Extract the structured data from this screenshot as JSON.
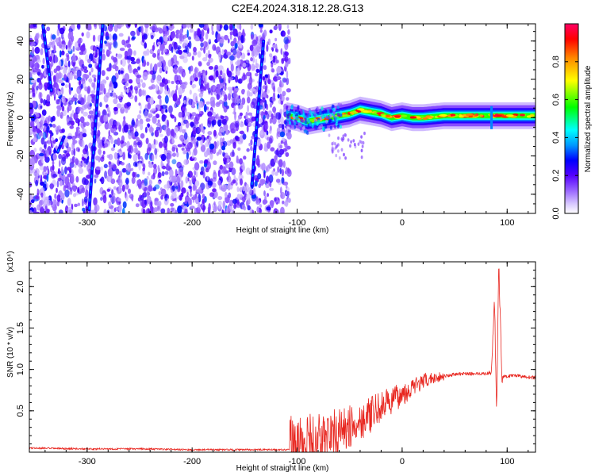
{
  "title": "C2E4.2024.318.12.28.G13",
  "chart_data": [
    {
      "type": "heatmap",
      "xlabel": "Height of straight line (km)",
      "ylabel": "Frequency (Hz)",
      "xlim": [
        -355,
        127
      ],
      "ylim": [
        -50,
        49
      ],
      "x_ticks": [
        -300,
        -200,
        -100,
        0,
        100
      ],
      "y_ticks": [
        -40,
        -20,
        0,
        20,
        40
      ],
      "x_tick_labels": [
        "-300",
        "-200",
        "-100",
        "0",
        "100"
      ],
      "y_tick_labels": [
        "-40",
        "-20",
        "0",
        "20",
        "40"
      ],
      "grid": false,
      "colorbar": {
        "label": "Normalized spectral amplitude",
        "range": [
          0.0,
          1.0
        ],
        "ticks": [
          0.0,
          0.2,
          0.4,
          0.6,
          0.8
        ],
        "tick_labels": [
          "0.0",
          "0.2",
          "0.4",
          "0.6",
          "0.8"
        ],
        "colormap": [
          "#ffffff",
          "#9966ff",
          "#5500ff",
          "#0000ff",
          "#00ffff",
          "#00ff00",
          "#ffff00",
          "#ff8800",
          "#ff0000",
          "#ff0066"
        ]
      },
      "noise_region": {
        "x": [
          -355,
          -107
        ],
        "amplitude": [
          0.05,
          0.3
        ]
      },
      "signal_trace": {
        "x": [
          -110,
          -100,
          -90,
          -80,
          -70,
          -60,
          -50,
          -40,
          -30,
          -20,
          -10,
          0,
          10,
          20,
          40,
          60,
          80,
          90,
          100,
          110,
          127
        ],
        "frequency": [
          1,
          0,
          -2,
          -1,
          0,
          1,
          2,
          4,
          3,
          2,
          0,
          1,
          0,
          0,
          1,
          1,
          1,
          1,
          1,
          1,
          1
        ]
      },
      "streaks": [
        {
          "x": [
            -342,
            -334
          ],
          "y": [
            48,
            14
          ]
        },
        {
          "x": [
            -328,
            -322
          ],
          "y": [
            -18,
            -10
          ]
        },
        {
          "x": [
            -298,
            -285
          ],
          "y": [
            -48,
            49
          ]
        },
        {
          "x": [
            -143,
            -132
          ],
          "y": [
            -35,
            40
          ]
        }
      ]
    },
    {
      "type": "line",
      "xlabel": "Height of straight line (km)",
      "ylabel": "SNR (10 * v/v)",
      "y_scale_label": "(x10⁴)",
      "xlim": [
        -355,
        127
      ],
      "ylim": [
        0,
        2.3
      ],
      "x_ticks": [
        -300,
        -200,
        -100,
        0,
        100
      ],
      "y_ticks": [
        0.5,
        1.0,
        1.5,
        2.0
      ],
      "x_tick_labels": [
        "-300",
        "-200",
        "-100",
        "0",
        "100"
      ],
      "y_tick_labels": [
        "0.5",
        "1.0",
        "1.5",
        "2.0"
      ],
      "grid": false,
      "color": "#e8261f",
      "series": [
        {
          "x": [
            -355,
            -300,
            -250,
            -200,
            -150,
            -110,
            -100,
            -90,
            -80,
            -70,
            -60,
            -50,
            -40,
            -30,
            -20,
            -10,
            0,
            10,
            20,
            30,
            40,
            50,
            60,
            70,
            80,
            85,
            88,
            90,
            92,
            95,
            100,
            110,
            120,
            127
          ],
          "values": [
            0.05,
            0.04,
            0.04,
            0.03,
            0.03,
            0.03,
            0.06,
            0.1,
            0.15,
            0.2,
            0.25,
            0.3,
            0.38,
            0.45,
            0.55,
            0.62,
            0.7,
            0.78,
            0.85,
            0.9,
            0.92,
            0.94,
            0.95,
            0.95,
            0.95,
            0.96,
            1.85,
            0.45,
            2.3,
            0.9,
            0.92,
            0.92,
            0.91,
            0.9
          ]
        }
      ]
    }
  ]
}
